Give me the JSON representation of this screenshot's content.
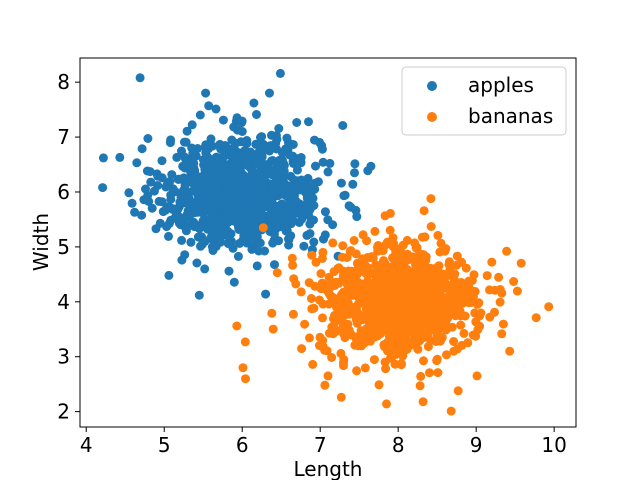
{
  "chart_data": {
    "type": "scatter",
    "title": "",
    "xlabel": "Length",
    "ylabel": "Width",
    "xlim": [
      3.92,
      10.28
    ],
    "ylim": [
      1.72,
      8.44
    ],
    "xticks": [
      4,
      5,
      6,
      7,
      8,
      9,
      10
    ],
    "yticks": [
      2,
      3,
      4,
      5,
      6,
      7,
      8
    ],
    "grid": false,
    "legend_position": "top-right",
    "series": [
      {
        "name": "apples",
        "color": "#1f77b4",
        "cluster": {
          "center": [
            6.0,
            6.0
          ],
          "std": [
            0.5,
            0.5
          ],
          "count": 1000
        },
        "points": [
          [
            4.22,
            6.62
          ],
          [
            4.21,
            6.08
          ],
          [
            4.43,
            6.63
          ],
          [
            4.69,
            8.08
          ],
          [
            6.49,
            8.16
          ],
          [
            5.53,
            7.8
          ],
          [
            4.95,
            5.43
          ],
          [
            5.03,
            5.37
          ],
          [
            4.62,
            5.63
          ],
          [
            5.45,
            4.12
          ],
          [
            5.06,
            4.48
          ],
          [
            6.3,
            4.14
          ],
          [
            7.29,
            7.21
          ],
          [
            7.65,
            6.47
          ],
          [
            7.44,
            6.35
          ],
          [
            7.37,
            5.75
          ],
          [
            7.23,
            4.83
          ],
          [
            5.83,
            4.56
          ],
          [
            5.57,
            7.57
          ],
          [
            6.15,
            7.62
          ],
          [
            6.35,
            7.8
          ],
          [
            6.85,
            7.28
          ],
          [
            6.55,
            5.35
          ],
          [
            6.9,
            4.95
          ]
        ]
      },
      {
        "name": "bananas",
        "color": "#ff7f0e",
        "cluster": {
          "center": [
            8.0,
            4.0
          ],
          "std": [
            0.5,
            0.5
          ],
          "count": 1000
        },
        "points": [
          [
            6.27,
            5.35
          ],
          [
            6.04,
            3.27
          ],
          [
            6.01,
            2.8
          ],
          [
            6.45,
            4.53
          ],
          [
            7.1,
            2.65
          ],
          [
            7.06,
            2.48
          ],
          [
            7.27,
            2.26
          ],
          [
            7.85,
            2.14
          ],
          [
            8.32,
            2.18
          ],
          [
            8.68,
            2.01
          ],
          [
            8.42,
            5.88
          ],
          [
            9.01,
            2.65
          ],
          [
            9.43,
            3.1
          ],
          [
            9.77,
            3.71
          ],
          [
            9.93,
            3.91
          ],
          [
            9.48,
            4.37
          ],
          [
            9.39,
            4.92
          ],
          [
            8.66,
            4.57
          ],
          [
            7.55,
            5.22
          ],
          [
            7.24,
            4.62
          ],
          [
            6.66,
            4.42
          ],
          [
            6.38,
            3.79
          ],
          [
            8.77,
            2.38
          ],
          [
            7.9,
            5.61
          ]
        ]
      }
    ]
  }
}
